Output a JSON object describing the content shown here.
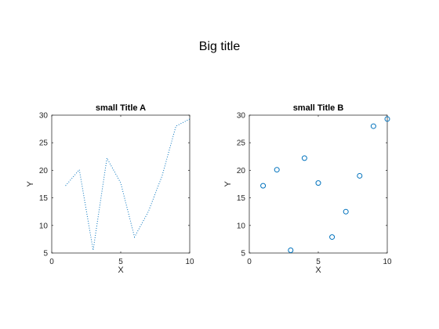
{
  "figure": {
    "suptitle": "Big title"
  },
  "chart_data": [
    {
      "type": "line",
      "line_style": "dotted",
      "color": "#0072bd",
      "title": "small Title A",
      "xlabel": "X",
      "ylabel": "Y",
      "xlim": [
        0,
        10
      ],
      "ylim": [
        5,
        30
      ],
      "xticks": [
        0,
        5,
        10
      ],
      "yticks": [
        5,
        10,
        15,
        20,
        25,
        30
      ],
      "grid": false,
      "legend": "none",
      "x": [
        1,
        2,
        3,
        4,
        5,
        6,
        7,
        8,
        9,
        10
      ],
      "y": [
        17.2,
        20.1,
        5.5,
        22.2,
        17.7,
        7.9,
        12.5,
        19.0,
        28.0,
        29.3
      ]
    },
    {
      "type": "scatter",
      "marker": "circle",
      "color": "#0072bd",
      "title": "small Title B",
      "xlabel": "X",
      "ylabel": "Y",
      "xlim": [
        0,
        10
      ],
      "ylim": [
        5,
        30
      ],
      "xticks": [
        0,
        5,
        10
      ],
      "yticks": [
        5,
        10,
        15,
        20,
        25,
        30
      ],
      "grid": false,
      "legend": "none",
      "x": [
        1,
        2,
        3,
        4,
        5,
        6,
        7,
        8,
        9,
        10
      ],
      "y": [
        17.2,
        20.1,
        5.5,
        22.2,
        17.7,
        7.9,
        12.5,
        19.0,
        28.0,
        29.3
      ]
    }
  ]
}
